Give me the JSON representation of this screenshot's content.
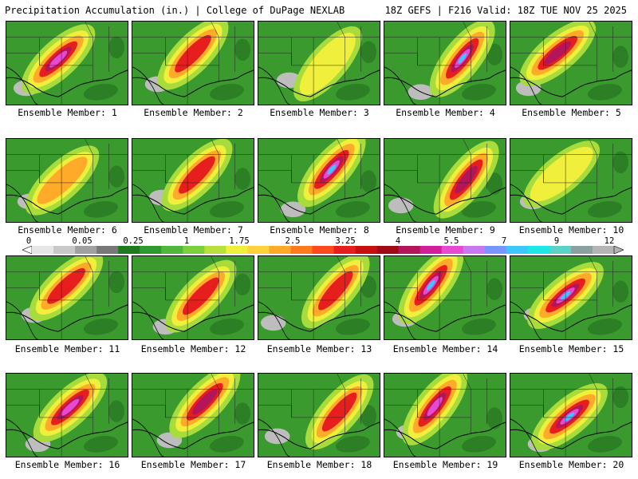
{
  "header": {
    "title_left": "Precipitation Accumulation (in.) | College of DuPage NEXLAB",
    "title_right": "18Z GEFS | F216 Valid: 18Z TUE NOV 25 2025"
  },
  "members": [
    {
      "label": "Ensemble Member: 1",
      "peak_intensity": 0.85
    },
    {
      "label": "Ensemble Member: 2",
      "peak_intensity": 0.55
    },
    {
      "label": "Ensemble Member: 3",
      "peak_intensity": 0.25
    },
    {
      "label": "Ensemble Member: 4",
      "peak_intensity": 0.95
    },
    {
      "label": "Ensemble Member: 5",
      "peak_intensity": 0.7
    },
    {
      "label": "Ensemble Member: 6",
      "peak_intensity": 0.45
    },
    {
      "label": "Ensemble Member: 7",
      "peak_intensity": 0.5
    },
    {
      "label": "Ensemble Member: 8",
      "peak_intensity": 0.9
    },
    {
      "label": "Ensemble Member: 9",
      "peak_intensity": 0.75
    },
    {
      "label": "Ensemble Member: 10",
      "peak_intensity": 0.3
    },
    {
      "label": "Ensemble Member: 11",
      "peak_intensity": 0.6
    },
    {
      "label": "Ensemble Member: 12",
      "peak_intensity": 0.55
    },
    {
      "label": "Ensemble Member: 13",
      "peak_intensity": 0.6
    },
    {
      "label": "Ensemble Member: 14",
      "peak_intensity": 0.95
    },
    {
      "label": "Ensemble Member: 15",
      "peak_intensity": 0.9
    },
    {
      "label": "Ensemble Member: 16",
      "peak_intensity": 0.8
    },
    {
      "label": "Ensemble Member: 17",
      "peak_intensity": 0.75
    },
    {
      "label": "Ensemble Member: 18",
      "peak_intensity": 0.55
    },
    {
      "label": "Ensemble Member: 19",
      "peak_intensity": 0.8
    },
    {
      "label": "Ensemble Member: 20",
      "peak_intensity": 0.9
    }
  ],
  "colorbar": {
    "labels": [
      "0",
      "0.05",
      "0.25",
      "1",
      "1.75",
      "2.5",
      "3.25",
      "4",
      "5.5",
      "7",
      "9",
      "12"
    ],
    "colors": [
      "#e6e6e6",
      "#c8c8c8",
      "#a0a0a0",
      "#787878",
      "#1e7a1e",
      "#2e9a2e",
      "#4fb83c",
      "#7ccf3c",
      "#b8e03c",
      "#f0f03c",
      "#ffd23c",
      "#ffaa28",
      "#ff7a1e",
      "#ff4a1e",
      "#e61e1e",
      "#c80f0f",
      "#a00a14",
      "#b4145a",
      "#d21e9a",
      "#e64ad2",
      "#c878f0",
      "#7896ff",
      "#3cc8ff",
      "#1ee6e6",
      "#5ad2c8",
      "#8ca0a0",
      "#b4b4b4"
    ]
  }
}
